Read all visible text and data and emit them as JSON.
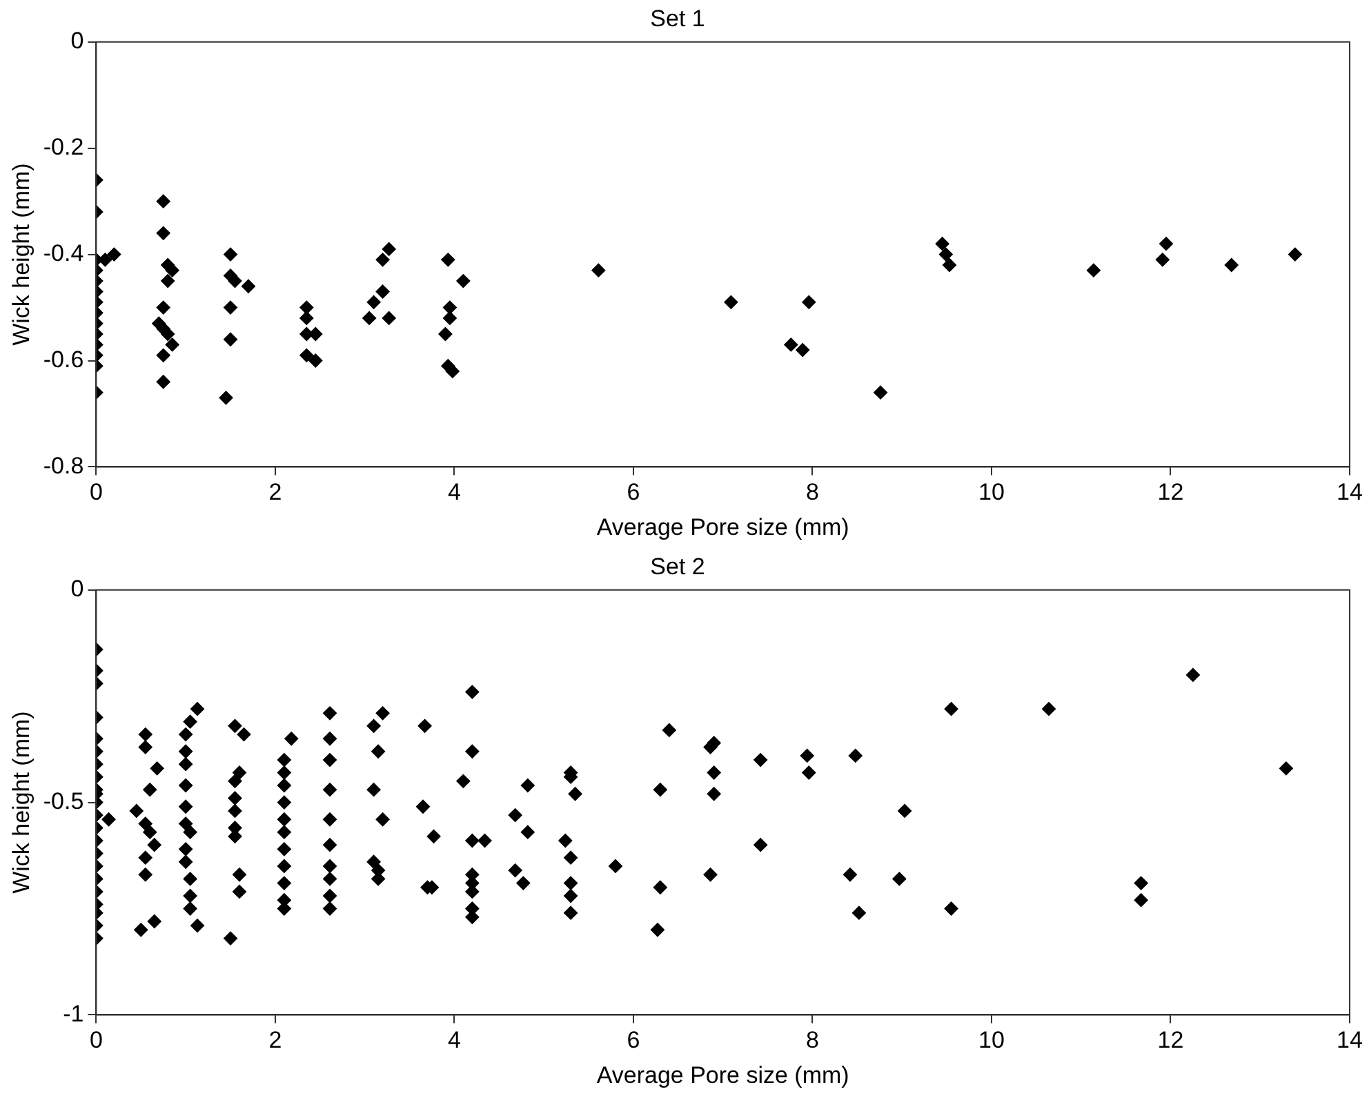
{
  "chart_data": [
    {
      "type": "scatter",
      "title": "Set 1",
      "xlabel": "Average Pore size (mm)",
      "ylabel": "Wick height (mm)",
      "xlim": [
        0,
        14
      ],
      "xticks": [
        0,
        2,
        4,
        6,
        8,
        10,
        12,
        14
      ],
      "ylim": [
        -0.8,
        0
      ],
      "yticks": [
        -0.8,
        -0.6,
        -0.4,
        -0.2,
        0
      ],
      "grid": false,
      "legend": false,
      "marker": "diamond",
      "series": [
        {
          "color": "#000000",
          "x": [
            0,
            0,
            0,
            0,
            0,
            0,
            0,
            0,
            0,
            0,
            0,
            0,
            0,
            0,
            0.1,
            0.2,
            0.75,
            0.75,
            0.8,
            0.85,
            0.8,
            0.75,
            0.7,
            0.75,
            0.8,
            0.85,
            0.75,
            0.75,
            1.5,
            1.5,
            1.55,
            1.7,
            1.5,
            1.5,
            1.45,
            2.35,
            2.35,
            2.35,
            2.45,
            2.35,
            2.45,
            3.27,
            3.2,
            3.2,
            3.1,
            3.05,
            3.27,
            3.93,
            4.1,
            3.95,
            3.95,
            3.9,
            3.93,
            3.98,
            5.61,
            7.09,
            7.76,
            7.89,
            7.96,
            8.76,
            9.45,
            9.49,
            9.53,
            11.14,
            11.91,
            11.95,
            12.68,
            13.39
          ],
          "values": [
            -0.26,
            -0.32,
            -0.41,
            -0.43,
            -0.45,
            -0.47,
            -0.49,
            -0.51,
            -0.53,
            -0.55,
            -0.57,
            -0.59,
            -0.61,
            -0.66,
            -0.41,
            -0.4,
            -0.3,
            -0.36,
            -0.42,
            -0.43,
            -0.45,
            -0.5,
            -0.53,
            -0.54,
            -0.55,
            -0.57,
            -0.59,
            -0.64,
            -0.4,
            -0.44,
            -0.45,
            -0.46,
            -0.5,
            -0.56,
            -0.67,
            -0.5,
            -0.52,
            -0.55,
            -0.55,
            -0.59,
            -0.6,
            -0.39,
            -0.41,
            -0.47,
            -0.49,
            -0.52,
            -0.52,
            -0.41,
            -0.45,
            -0.5,
            -0.52,
            -0.55,
            -0.61,
            -0.62,
            -0.43,
            -0.49,
            -0.57,
            -0.58,
            -0.49,
            -0.66,
            -0.38,
            -0.4,
            -0.42,
            -0.43,
            -0.41,
            -0.38,
            -0.42,
            -0.4
          ]
        }
      ]
    },
    {
      "type": "scatter",
      "title": "Set 2",
      "xlabel": "Average Pore size (mm)",
      "ylabel": "Wick height (mm)",
      "xlim": [
        0,
        14
      ],
      "xticks": [
        0,
        2,
        4,
        6,
        8,
        10,
        12,
        14
      ],
      "ylim": [
        -1,
        0
      ],
      "yticks": [
        -1,
        -0.5,
        0
      ],
      "grid": false,
      "legend": false,
      "marker": "diamond",
      "series": [
        {
          "color": "#000000",
          "x": [
            0,
            0,
            0,
            0,
            0,
            0,
            0,
            0,
            0,
            0,
            0,
            0,
            0,
            0,
            0,
            0,
            0,
            0,
            0,
            0,
            0,
            0,
            0.14,
            0.55,
            0.55,
            0.68,
            0.6,
            0.45,
            0.55,
            0.6,
            0.65,
            0.55,
            0.55,
            0.65,
            0.5,
            1.13,
            1.05,
            1.0,
            1.0,
            1.0,
            1.0,
            1.0,
            1.0,
            1.05,
            1.0,
            1.0,
            1.05,
            1.05,
            1.05,
            1.13,
            1.55,
            1.65,
            1.6,
            1.55,
            1.55,
            1.55,
            1.55,
            1.55,
            1.6,
            1.6,
            1.5,
            2.18,
            2.1,
            2.1,
            2.1,
            2.1,
            2.1,
            2.1,
            2.1,
            2.1,
            2.1,
            2.1,
            2.1,
            2.61,
            2.61,
            2.61,
            2.61,
            2.61,
            2.61,
            2.61,
            2.61,
            2.61,
            2.61,
            3.2,
            3.1,
            3.15,
            3.1,
            3.2,
            3.1,
            3.15,
            3.15,
            3.67,
            3.65,
            3.77,
            3.7,
            3.75,
            4.2,
            4.2,
            4.1,
            4.2,
            4.34,
            4.2,
            4.2,
            4.2,
            4.2,
            4.2,
            4.82,
            4.68,
            4.82,
            4.68,
            4.77,
            5.3,
            5.3,
            5.35,
            5.24,
            5.3,
            5.3,
            5.3,
            5.3,
            5.8,
            6.4,
            6.3,
            6.3,
            6.27,
            6.9,
            6.86,
            6.9,
            6.9,
            6.86,
            7.42,
            7.42,
            7.94,
            7.96,
            8.48,
            9.03,
            8.42,
            8.52,
            8.97,
            9.55,
            9.55,
            10.64,
            12.25,
            11.67,
            11.67,
            13.29
          ],
          "values": [
            -0.14,
            -0.19,
            -0.22,
            -0.3,
            -0.35,
            -0.38,
            -0.41,
            -0.44,
            -0.47,
            -0.5,
            -0.53,
            -0.56,
            -0.59,
            -0.62,
            -0.65,
            -0.68,
            -0.71,
            -0.74,
            -0.76,
            -0.79,
            -0.82,
            -0.48,
            -0.54,
            -0.34,
            -0.37,
            -0.42,
            -0.47,
            -0.52,
            -0.55,
            -0.57,
            -0.6,
            -0.63,
            -0.67,
            -0.78,
            -0.8,
            -0.28,
            -0.31,
            -0.34,
            -0.38,
            -0.41,
            -0.46,
            -0.51,
            -0.55,
            -0.57,
            -0.61,
            -0.64,
            -0.68,
            -0.72,
            -0.75,
            -0.79,
            -0.32,
            -0.34,
            -0.43,
            -0.45,
            -0.49,
            -0.52,
            -0.56,
            -0.58,
            -0.67,
            -0.71,
            -0.82,
            -0.35,
            -0.4,
            -0.43,
            -0.46,
            -0.5,
            -0.54,
            -0.57,
            -0.61,
            -0.65,
            -0.69,
            -0.73,
            -0.75,
            -0.29,
            -0.35,
            -0.4,
            -0.47,
            -0.54,
            -0.6,
            -0.65,
            -0.68,
            -0.72,
            -0.75,
            -0.29,
            -0.32,
            -0.38,
            -0.47,
            -0.54,
            -0.64,
            -0.66,
            -0.68,
            -0.32,
            -0.51,
            -0.58,
            -0.7,
            -0.7,
            -0.24,
            -0.38,
            -0.45,
            -0.59,
            -0.59,
            -0.67,
            -0.69,
            -0.71,
            -0.75,
            -0.77,
            -0.46,
            -0.53,
            -0.57,
            -0.66,
            -0.69,
            -0.43,
            -0.44,
            -0.48,
            -0.59,
            -0.63,
            -0.69,
            -0.72,
            -0.76,
            -0.65,
            -0.33,
            -0.47,
            -0.7,
            -0.8,
            -0.36,
            -0.37,
            -0.43,
            -0.48,
            -0.67,
            -0.4,
            -0.6,
            -0.39,
            -0.43,
            -0.39,
            -0.52,
            -0.67,
            -0.76,
            -0.68,
            -0.28,
            -0.75,
            -0.28,
            -0.2,
            -0.69,
            -0.73,
            -0.42
          ]
        }
      ]
    }
  ]
}
